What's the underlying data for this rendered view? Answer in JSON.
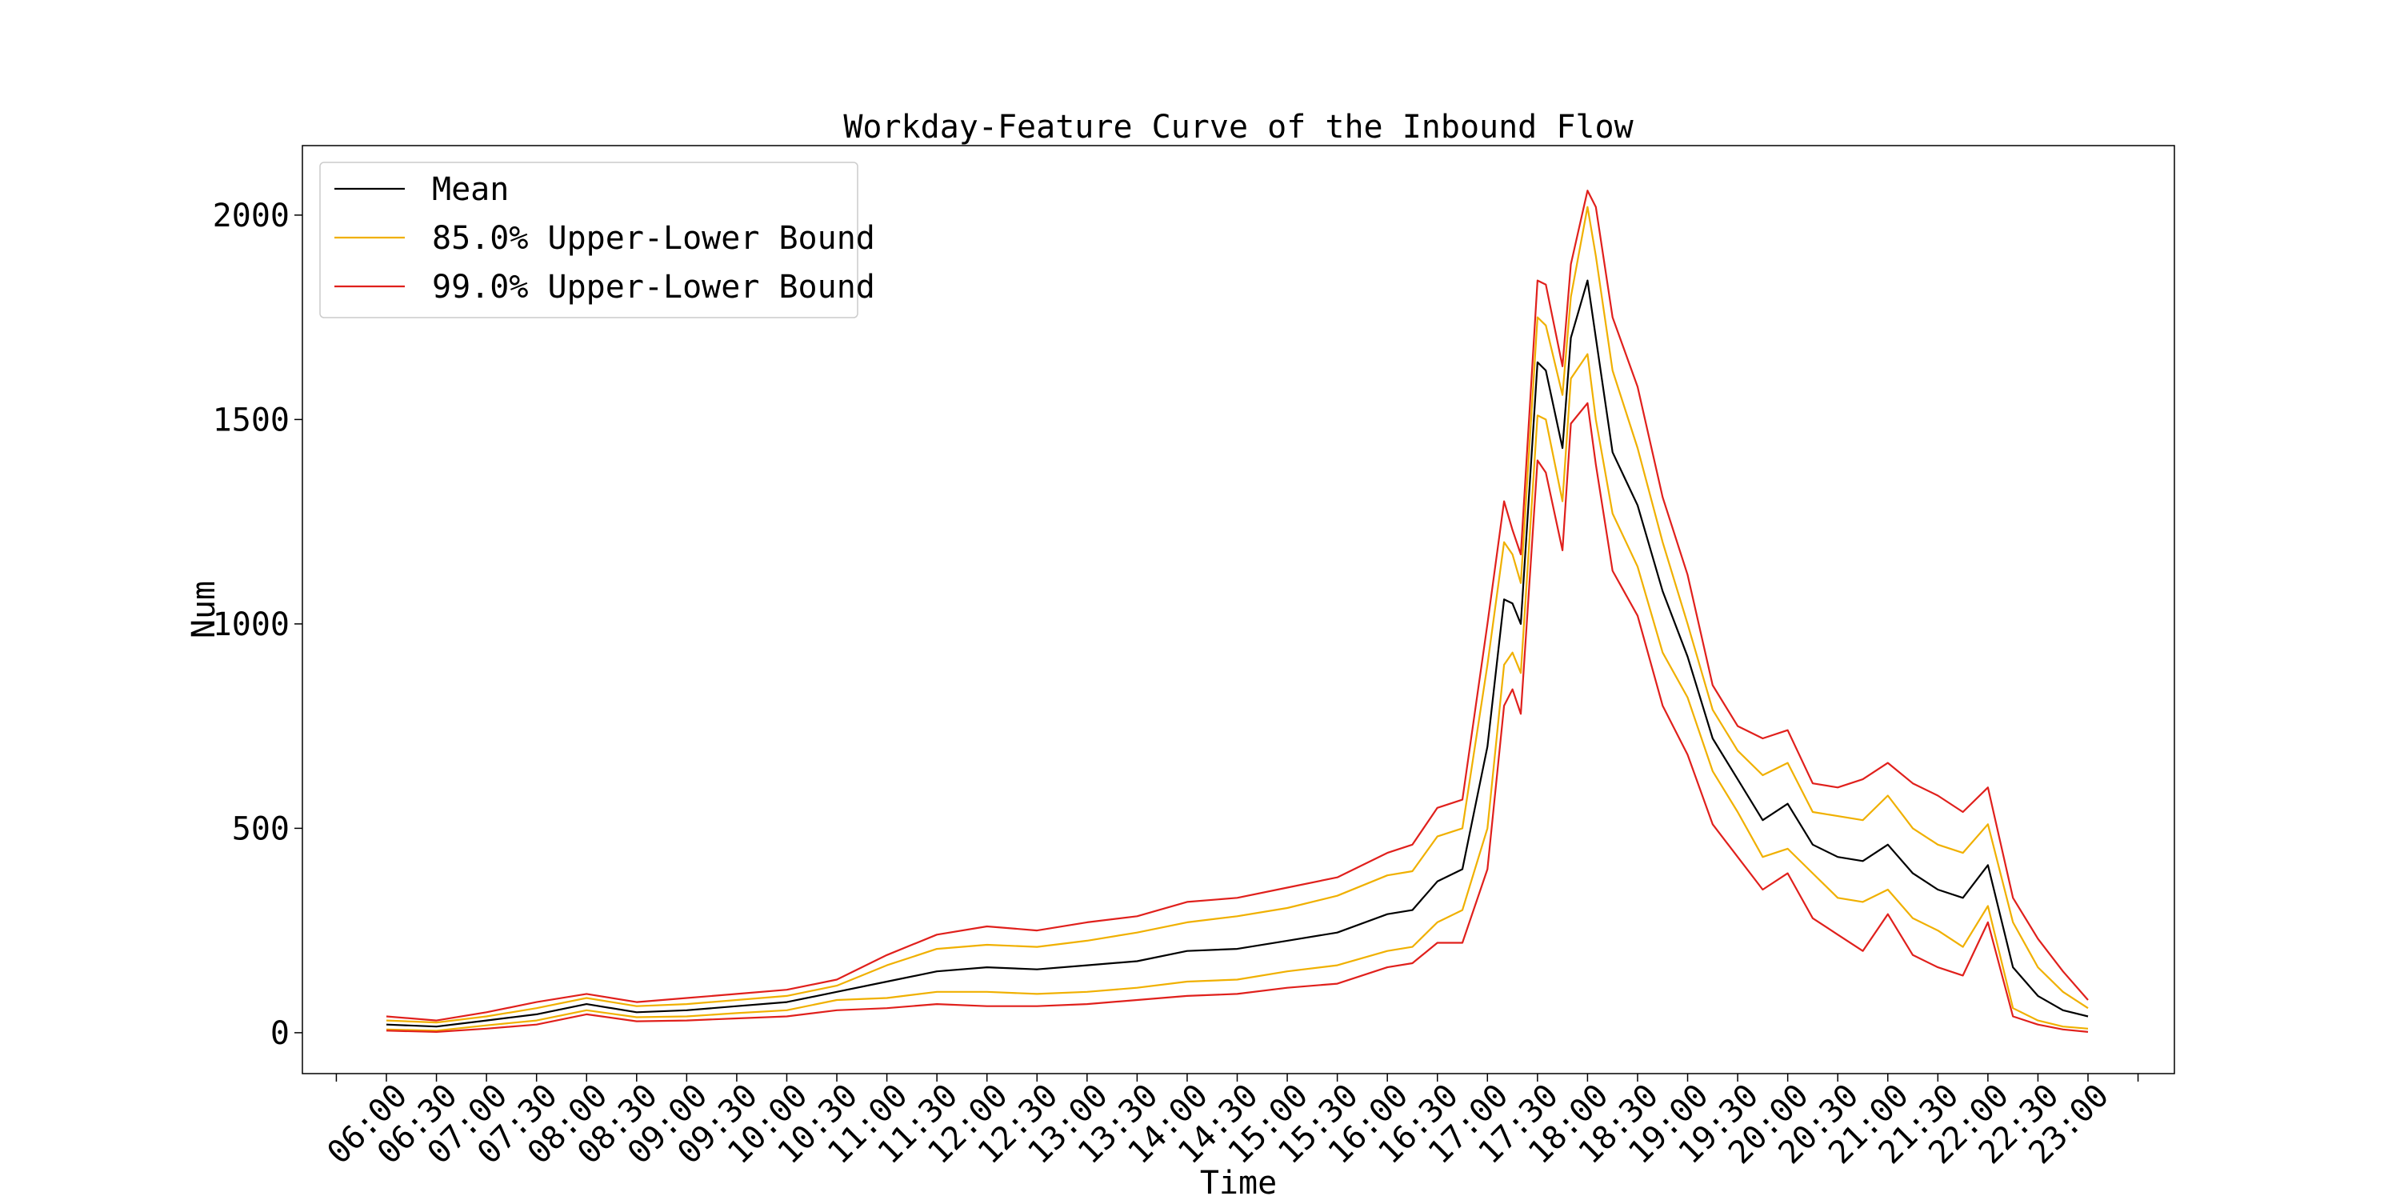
{
  "chart_data": {
    "type": "line",
    "title": "Workday-Feature Curve of the Inbound Flow",
    "xlabel": "Time",
    "ylabel": "Num",
    "ylim": [
      -100,
      2170
    ],
    "yticks": [
      0,
      500,
      1000,
      1500,
      2000
    ],
    "xticks": [
      "06:00",
      "06:30",
      "07:00",
      "07:30",
      "08:00",
      "08:30",
      "09:00",
      "09:30",
      "10:00",
      "10:30",
      "11:00",
      "11:30",
      "12:00",
      "12:30",
      "13:00",
      "13:30",
      "14:00",
      "14:30",
      "15:00",
      "15:30",
      "16:00",
      "16:30",
      "17:00",
      "17:30",
      "18:00",
      "18:30",
      "19:00",
      "19:30",
      "20:00",
      "20:30",
      "21:00",
      "21:30",
      "22:00",
      "22:30",
      "23:00"
    ],
    "x": [
      "06:00",
      "06:30",
      "07:00",
      "07:30",
      "08:00",
      "08:30",
      "09:00",
      "09:30",
      "10:00",
      "10:30",
      "11:00",
      "11:30",
      "12:00",
      "12:30",
      "13:00",
      "13:30",
      "14:00",
      "14:30",
      "15:00",
      "15:30",
      "16:00",
      "16:15",
      "16:30",
      "16:45",
      "17:00",
      "17:10",
      "17:15",
      "17:20",
      "17:30",
      "17:35",
      "17:45",
      "17:50",
      "18:00",
      "18:05",
      "18:15",
      "18:30",
      "18:45",
      "19:00",
      "19:15",
      "19:30",
      "19:45",
      "20:00",
      "20:15",
      "20:30",
      "20:45",
      "21:00",
      "21:15",
      "21:30",
      "21:45",
      "22:00",
      "22:15",
      "22:30",
      "22:45",
      "23:00"
    ],
    "grid": false,
    "legend_position": "top-left",
    "series": [
      {
        "name": "Mean",
        "color": "#000000",
        "values": [
          20,
          15,
          30,
          45,
          70,
          50,
          55,
          65,
          75,
          100,
          125,
          150,
          160,
          155,
          165,
          175,
          200,
          205,
          225,
          245,
          290,
          300,
          370,
          400,
          700,
          1060,
          1050,
          1000,
          1640,
          1620,
          1430,
          1700,
          1840,
          1700,
          1420,
          1290,
          1080,
          920,
          720,
          620,
          520,
          560,
          460,
          430,
          420,
          460,
          390,
          350,
          330,
          410,
          160,
          90,
          55,
          40
        ]
      },
      {
        "name": "85.0% Upper-Lower Bound",
        "color": "#f0b000",
        "values": [
          30,
          25,
          40,
          60,
          85,
          65,
          70,
          80,
          90,
          115,
          165,
          205,
          215,
          210,
          225,
          245,
          270,
          285,
          305,
          335,
          385,
          395,
          480,
          500,
          900,
          1200,
          1170,
          1100,
          1750,
          1730,
          1560,
          1800,
          2020,
          1900,
          1620,
          1430,
          1200,
          1000,
          790,
          690,
          630,
          660,
          540,
          530,
          520,
          580,
          500,
          460,
          440,
          510,
          270,
          160,
          100,
          60
        ]
      },
      {
        "name": "85.0% Upper-Lower Bound (lower)",
        "color": "#f0b000",
        "values": [
          8,
          5,
          18,
          30,
          55,
          38,
          40,
          48,
          55,
          80,
          85,
          100,
          100,
          95,
          100,
          110,
          125,
          130,
          150,
          165,
          200,
          210,
          270,
          300,
          500,
          900,
          930,
          880,
          1510,
          1500,
          1300,
          1600,
          1660,
          1500,
          1270,
          1140,
          930,
          820,
          640,
          540,
          430,
          450,
          390,
          330,
          320,
          350,
          280,
          250,
          210,
          310,
          60,
          30,
          15,
          10
        ]
      },
      {
        "name": "99.0% Upper-Lower Bound",
        "color": "#e0201c",
        "values": [
          40,
          30,
          50,
          75,
          95,
          75,
          85,
          95,
          105,
          130,
          190,
          240,
          260,
          250,
          270,
          285,
          320,
          330,
          355,
          380,
          440,
          460,
          550,
          570,
          1000,
          1300,
          1230,
          1170,
          1840,
          1830,
          1630,
          1880,
          2060,
          2020,
          1750,
          1580,
          1310,
          1120,
          850,
          750,
          720,
          740,
          610,
          600,
          620,
          660,
          610,
          580,
          540,
          600,
          330,
          230,
          150,
          80
        ]
      },
      {
        "name": "99.0% Upper-Lower Bound (lower)",
        "color": "#e0201c",
        "values": [
          5,
          2,
          10,
          20,
          45,
          28,
          30,
          35,
          40,
          55,
          60,
          70,
          65,
          65,
          70,
          80,
          90,
          95,
          110,
          120,
          160,
          170,
          220,
          220,
          400,
          800,
          840,
          780,
          1400,
          1370,
          1180,
          1490,
          1540,
          1390,
          1130,
          1020,
          800,
          680,
          510,
          430,
          350,
          390,
          280,
          240,
          200,
          290,
          190,
          160,
          140,
          270,
          40,
          20,
          8,
          2
        ]
      }
    ],
    "legend": [
      {
        "label": "Mean",
        "color": "#000000"
      },
      {
        "label": "85.0% Upper-Lower Bound",
        "color": "#f0b000"
      },
      {
        "label": "99.0% Upper-Lower Bound",
        "color": "#e0201c"
      }
    ]
  }
}
